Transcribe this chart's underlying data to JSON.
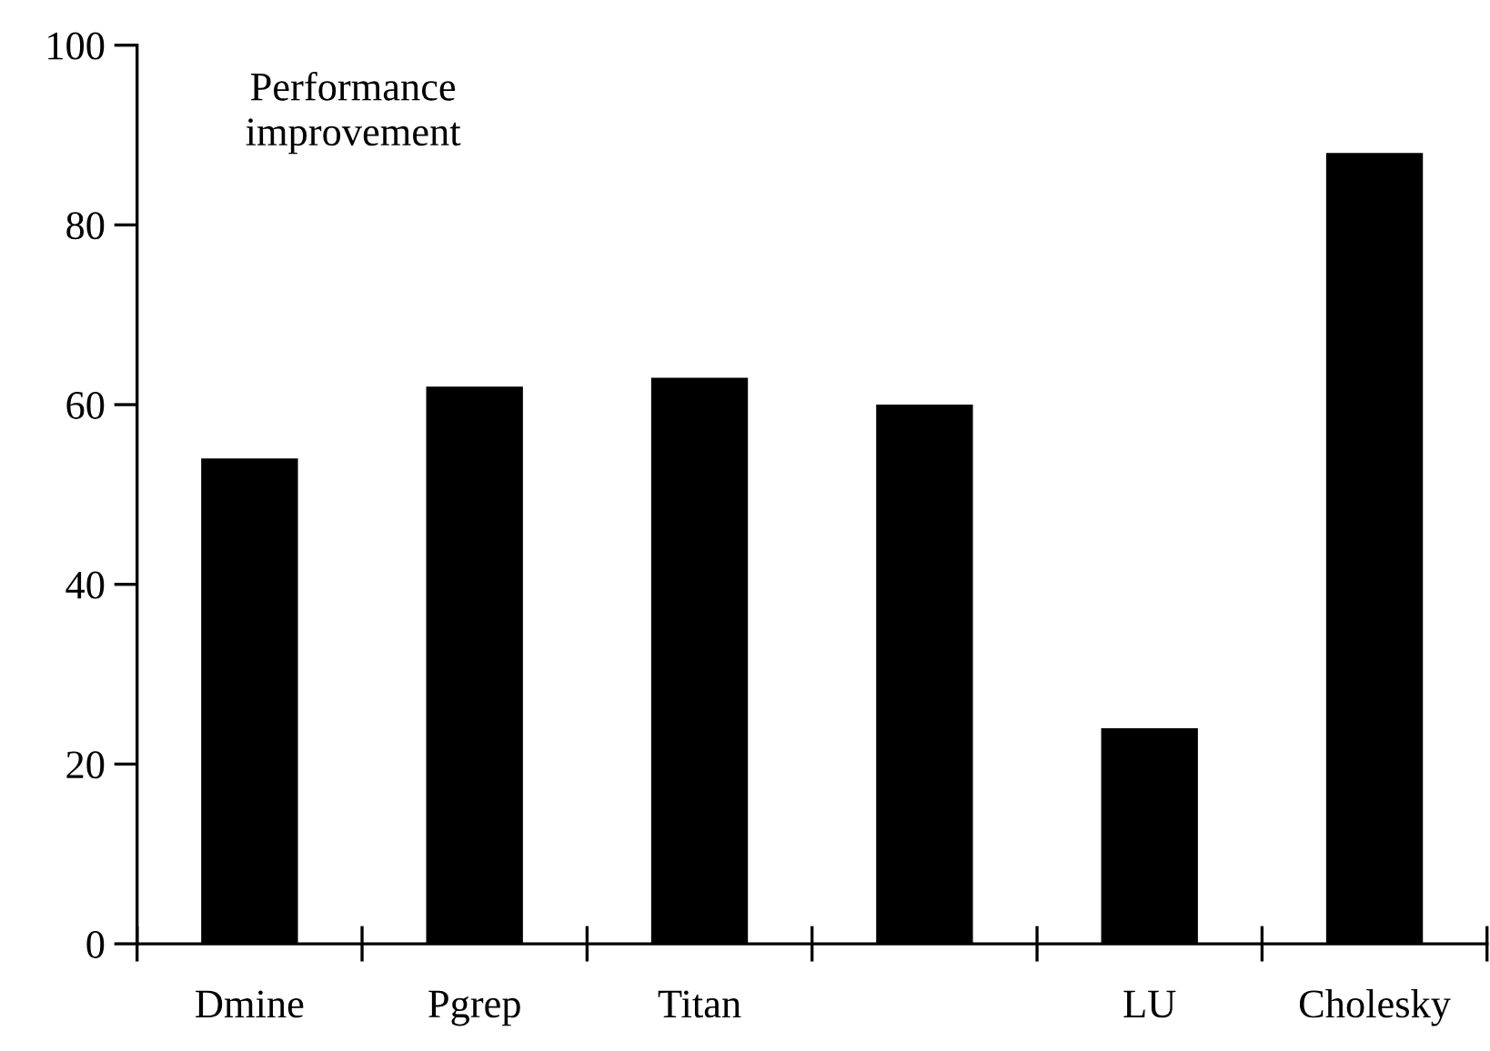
{
  "chart_data": {
    "type": "bar",
    "title": "Performance\nimprovement",
    "categories": [
      "Dmine",
      "Pgrep",
      "Titan",
      null,
      "LU",
      "Cholesky"
    ],
    "values": [
      54,
      62,
      63,
      60,
      24,
      88
    ],
    "color": "#000000",
    "ylim": [
      0,
      100
    ],
    "yticks": [
      0,
      20,
      40,
      60,
      80,
      100
    ],
    "grid": false
  }
}
